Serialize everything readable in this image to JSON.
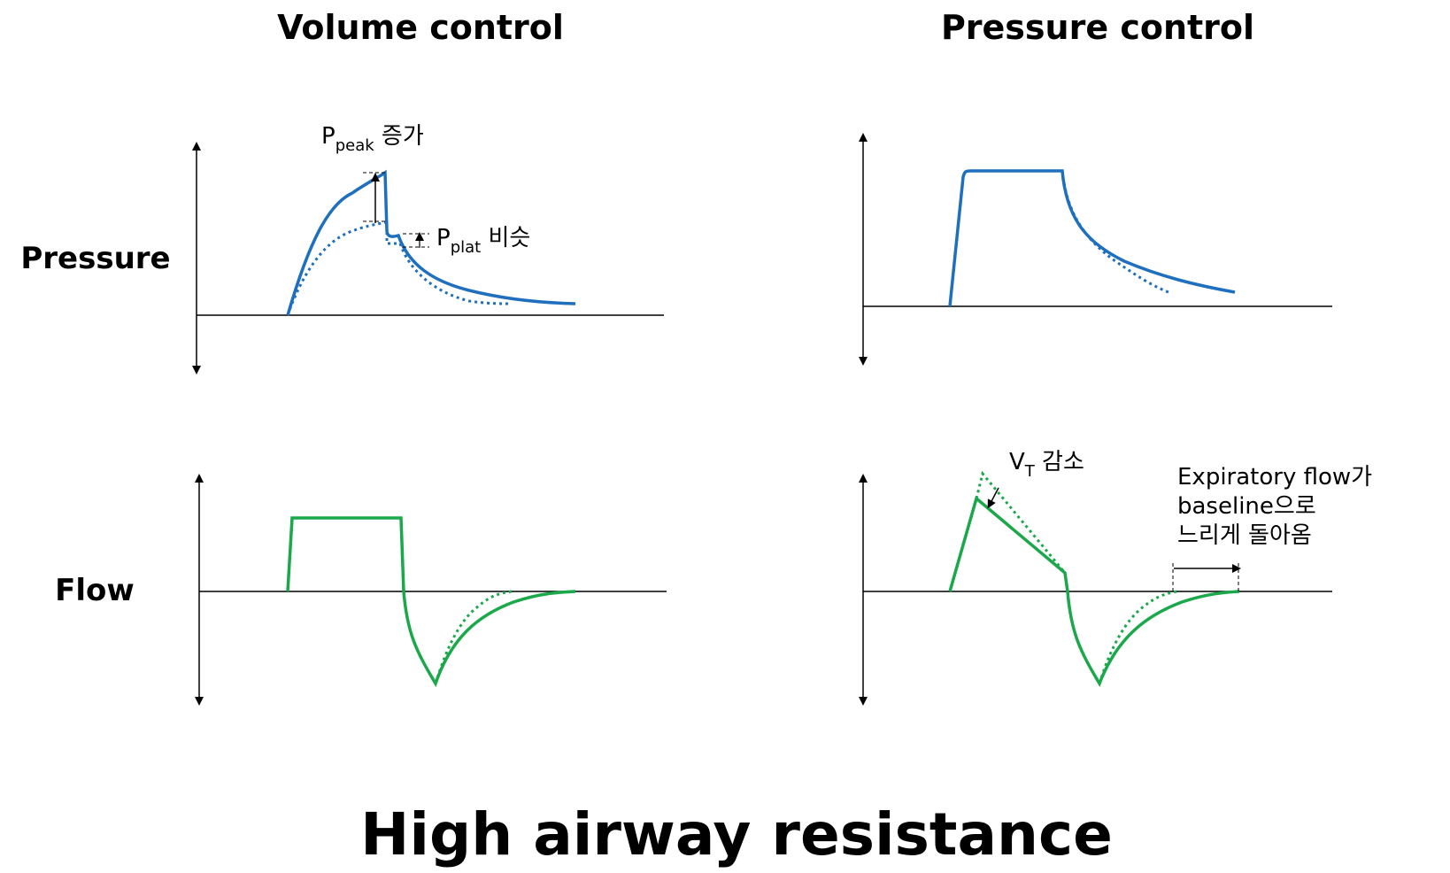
{
  "main_title": "High airway resistance",
  "columns": {
    "volume": "Volume control",
    "pressure": "Pressure control"
  },
  "rows": {
    "pressure": "Pressure",
    "flow": "Flow"
  },
  "annotations": {
    "ppeak": {
      "symbol": "P",
      "sub": "peak",
      "text": " 증가"
    },
    "pplat": {
      "symbol": "P",
      "sub": "plat",
      "text": " 비슷"
    },
    "vt": {
      "symbol": "V",
      "sub": "T",
      "text": " 감소"
    },
    "expiratory": [
      "Expiratory flow가",
      "baseline으로",
      "느리게 돌아옴"
    ]
  },
  "colors": {
    "pressure_curve": "#1f6fbf",
    "flow_curve": "#1aa84a",
    "axis": "#000000"
  },
  "icons": [
    "axis-up-arrow-icon",
    "axis-down-arrow-icon",
    "annotation-arrow-icon"
  ]
}
